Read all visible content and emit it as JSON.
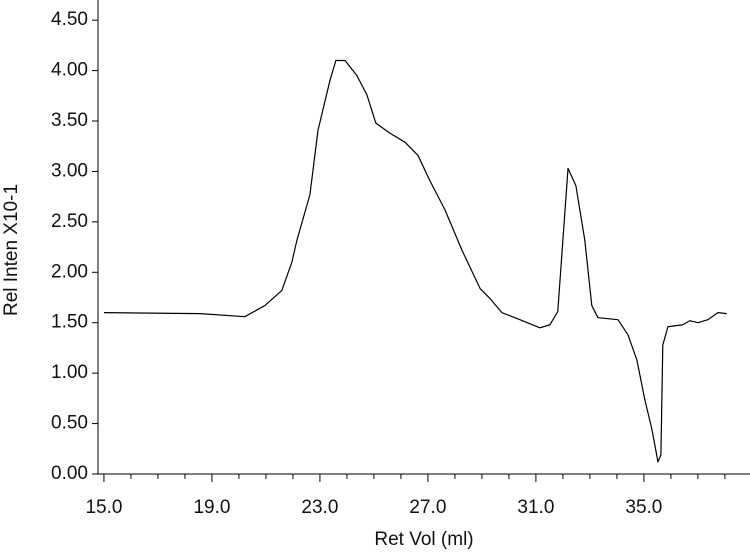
{
  "chart_data": {
    "type": "line",
    "x_label": "Ret Vol (ml)",
    "y_label": "Rel Inten X10-1",
    "xlim": [
      14.78,
      38.93
    ],
    "ylim": [
      0,
      4.7
    ],
    "xticks": [
      {
        "value": 15,
        "label": "15.0"
      },
      {
        "value": 19,
        "label": "19.0"
      },
      {
        "value": 23,
        "label": "23.0"
      },
      {
        "value": 27,
        "label": "27.0"
      },
      {
        "value": 31,
        "label": "31.0"
      },
      {
        "value": 35,
        "label": "35.0"
      }
    ],
    "xminorticks": [
      16,
      17,
      18,
      20,
      21,
      22,
      24,
      25,
      26,
      28,
      29,
      30,
      32,
      33,
      34,
      36,
      37,
      38
    ],
    "yticks": [
      {
        "value": 0,
        "label": "0.00"
      },
      {
        "value": 0.5,
        "label": "0.50"
      },
      {
        "value": 1,
        "label": "1.00"
      },
      {
        "value": 1.5,
        "label": "1.50"
      },
      {
        "value": 2,
        "label": "2.00"
      },
      {
        "value": 2.5,
        "label": "2.50"
      },
      {
        "value": 3,
        "label": "3.00"
      },
      {
        "value": 3.5,
        "label": "3.50"
      },
      {
        "value": 4,
        "label": "4.00"
      },
      {
        "value": 4.5,
        "label": "4.50"
      }
    ],
    "series": [
      {
        "color": "#000000",
        "x": [
          15.0,
          18.56,
          20.22,
          20.96,
          21.59,
          21.96,
          22.15,
          22.63,
          22.93,
          23.37,
          23.59,
          23.93,
          24.37,
          24.74,
          25.07,
          25.59,
          26.15,
          26.63,
          27.07,
          27.63,
          28.26,
          28.93,
          29.3,
          29.74,
          30.41,
          31.15,
          31.52,
          31.81,
          32.0,
          32.19,
          32.48,
          32.81,
          33.07,
          33.3,
          34.04,
          34.41,
          34.74,
          35.04,
          35.3,
          35.52,
          35.63,
          35.7,
          35.89,
          36.44,
          36.7,
          37.0,
          37.37,
          37.74,
          38.07
        ],
        "values": [
          1.6,
          1.59,
          1.56,
          1.67,
          1.82,
          2.1,
          2.32,
          2.77,
          3.41,
          3.9,
          4.1,
          4.1,
          3.95,
          3.76,
          3.48,
          3.38,
          3.29,
          3.16,
          2.91,
          2.62,
          2.22,
          1.84,
          1.74,
          1.6,
          1.53,
          1.45,
          1.48,
          1.61,
          2.32,
          3.03,
          2.86,
          2.32,
          1.67,
          1.55,
          1.53,
          1.38,
          1.13,
          0.73,
          0.44,
          0.12,
          0.19,
          1.28,
          1.46,
          1.48,
          1.52,
          1.5,
          1.53,
          1.6,
          1.59
        ]
      }
    ]
  }
}
